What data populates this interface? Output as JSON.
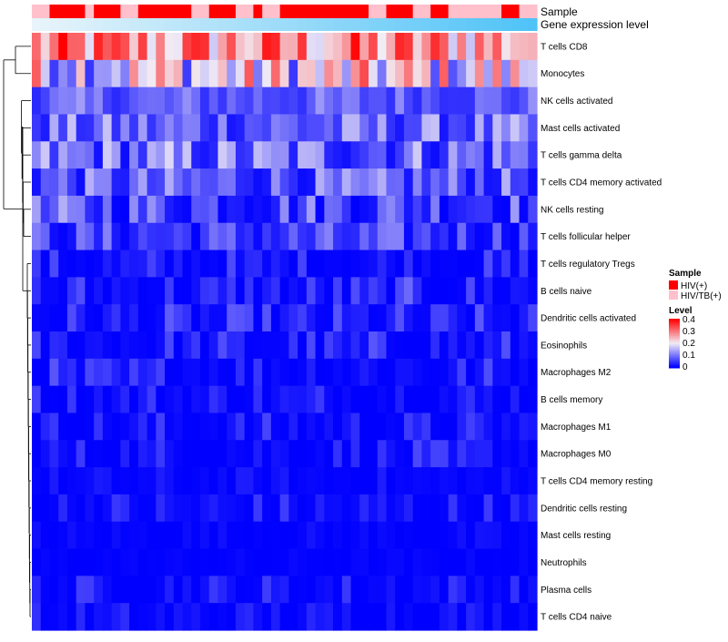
{
  "chart_data": {
    "type": "heatmap",
    "annotations": {
      "sample_label": "Sample",
      "gene_label": "Gene expression level"
    },
    "sample_pattern": "PPRRRRPRRRPPRRRRRRPPRRRPPRPPRRRRRRRRRRPPRRRPPRRPPPPPPRRPP",
    "sample_pattern_legend": {
      "R": "HIV(+)",
      "P": "HIV/TB(+)"
    },
    "gene_expression": {
      "min": 0,
      "max": 1,
      "trend": "increasing left to right"
    },
    "rows": [
      "T cells CD8",
      "Monocytes",
      "NK cells activated",
      "Mast cells activated",
      "T cells gamma delta",
      "T cells CD4 memory activated",
      "NK cells resting",
      "T cells follicular helper",
      "T cells regulatory  Tregs",
      "B cells naive",
      "Dendritic cells activated",
      "Eosinophils",
      "Macrophages M2",
      "B cells memory",
      "Macrophages M1",
      "Macrophages M0",
      "T cells CD4 memory resting",
      "Dendritic cells resting",
      "Mast cells resting",
      "Neutrophils",
      "Plasma cells",
      "T cells CD4 naive"
    ],
    "row_level_ranges": [
      [
        0.16,
        0.45
      ],
      [
        0.05,
        0.38
      ],
      [
        0.04,
        0.15
      ],
      [
        0.02,
        0.19
      ],
      [
        0.01,
        0.22
      ],
      [
        0.01,
        0.17
      ],
      [
        0.0,
        0.17
      ],
      [
        0.0,
        0.13
      ],
      [
        0.0,
        0.08
      ],
      [
        0.0,
        0.1
      ],
      [
        0.0,
        0.09
      ],
      [
        0.0,
        0.09
      ],
      [
        0.0,
        0.09
      ],
      [
        0.0,
        0.08
      ],
      [
        0.0,
        0.07
      ],
      [
        0.0,
        0.07
      ],
      [
        0.0,
        0.03
      ],
      [
        0.0,
        0.07
      ],
      [
        0.0,
        0.02
      ],
      [
        0.0,
        0.01
      ],
      [
        0.0,
        0.07
      ],
      [
        0.0,
        0.05
      ]
    ],
    "legend_sample": {
      "title": "Sample",
      "entries": [
        {
          "label": "HIV(+)",
          "color": "#ff0000"
        },
        {
          "label": "HIV/TB(+)",
          "color": "#ffc0cb"
        }
      ]
    },
    "legend_level": {
      "title": "Level",
      "ticks": [
        "0.4",
        "0.3",
        "0.2",
        "0.1",
        "0"
      ],
      "tick_values": [
        0.4,
        0.3,
        0.2,
        0.1,
        0
      ],
      "range": [
        0,
        0.45
      ]
    },
    "colors": {
      "low": "#0000ff",
      "mid": "#f2ecf5",
      "high": "#ff0000",
      "gene_low": "#e8f4fa",
      "gene_high": "#4fc3f7",
      "dendrogram": "#000000"
    },
    "n_columns": 57,
    "row_dendrogram_merge_order": [
      [
        18,
        19
      ],
      [
        16,
        17
      ],
      [
        20,
        21
      ],
      [
        13,
        14
      ],
      [
        14,
        15
      ],
      [
        11,
        12
      ],
      [
        9,
        10
      ],
      [
        8,
        9
      ],
      [
        6,
        7
      ],
      [
        4,
        5
      ],
      [
        2,
        3
      ],
      [
        0,
        1
      ]
    ]
  }
}
